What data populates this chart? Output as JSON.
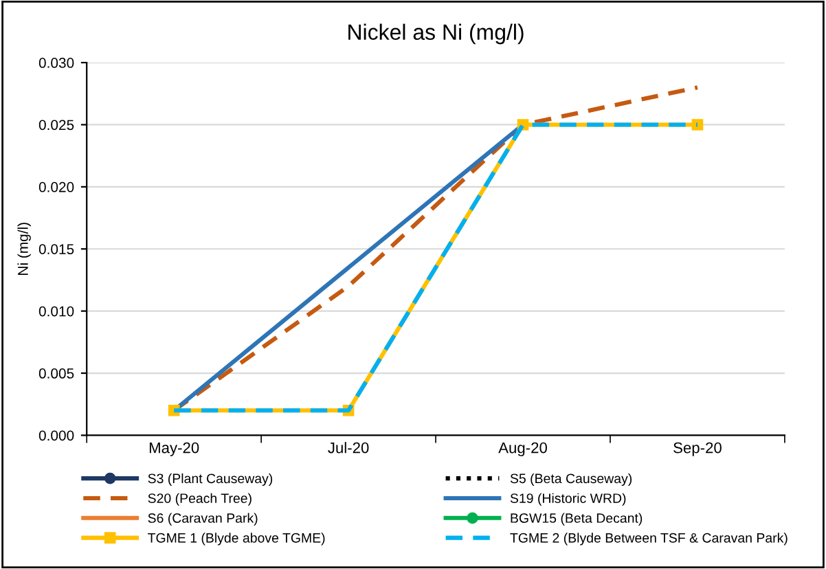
{
  "chart_data": {
    "type": "line",
    "title": "Nickel as Ni (mg/l)",
    "ylabel": "Ni (mg/l)",
    "categories": [
      "May-20",
      "Jul-20",
      "Aug-20",
      "Sep-20"
    ],
    "ylim": [
      0,
      0.03
    ],
    "yticks": [
      {
        "value": 0,
        "label": "0.000"
      },
      {
        "value": 0.005,
        "label": "0.005"
      },
      {
        "value": 0.01,
        "label": "0.010"
      },
      {
        "value": 0.015,
        "label": "0.015"
      },
      {
        "value": 0.02,
        "label": "0.020"
      },
      {
        "value": 0.025,
        "label": "0.025"
      },
      {
        "value": 0.03,
        "label": "0.030"
      }
    ],
    "grid": "y",
    "legend": "bottom",
    "series": [
      {
        "name": "S3 (Plant Causeway)",
        "color": "#1f3864",
        "marker": "circle",
        "line_style": "solid",
        "values": [
          null,
          null,
          null,
          null
        ]
      },
      {
        "name": "S5 (Beta Causeway)",
        "color": "#000000",
        "marker": "none",
        "line_style": "dotted",
        "values": [
          null,
          null,
          null,
          null
        ]
      },
      {
        "name": "S20 (Peach Tree)",
        "color": "#c55a11",
        "marker": "none",
        "line_style": "dashed",
        "values": [
          0.002,
          0.012,
          0.025,
          0.028
        ]
      },
      {
        "name": "S19 (Historic WRD)",
        "color": "#2e75b6",
        "marker": "none",
        "line_style": "solid",
        "values": [
          0.002,
          null,
          0.025,
          null
        ]
      },
      {
        "name": "S6 (Caravan Park)",
        "color": "#ed7d31",
        "marker": "none",
        "line_style": "solid",
        "values": [
          null,
          null,
          null,
          null
        ]
      },
      {
        "name": "BGW15 (Beta Decant)",
        "color": "#00b050",
        "marker": "circle",
        "line_style": "solid",
        "values": [
          null,
          null,
          null,
          null
        ]
      },
      {
        "name": "TGME 1 (Blyde above TGME)",
        "color": "#ffc000",
        "marker": "square",
        "line_style": "solid",
        "values": [
          0.002,
          0.002,
          0.025,
          0.025
        ]
      },
      {
        "name": "TGME 2 (Blyde Between TSF & Caravan Park)",
        "color": "#00b0f0",
        "marker": "none",
        "line_style": "dashed",
        "values": [
          0.002,
          0.002,
          0.025,
          0.025
        ]
      }
    ]
  }
}
